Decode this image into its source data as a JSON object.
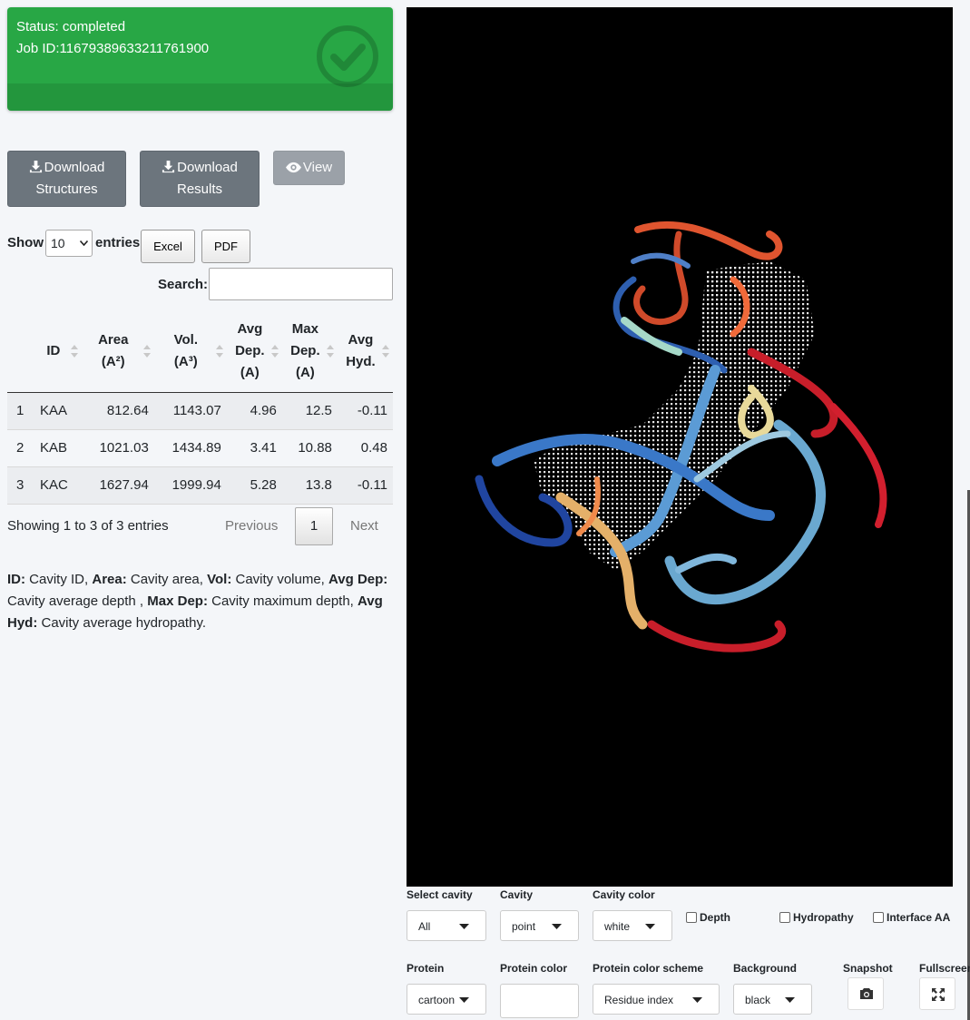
{
  "status": {
    "status_text": "Status: completed",
    "job_text": "Job ID:11679389633211761900",
    "icon": "check-circle-icon"
  },
  "actions": {
    "download_structures": [
      "Download",
      "Structures"
    ],
    "download_results": [
      "Download",
      "Results"
    ],
    "view": "View"
  },
  "table_controls": {
    "show": "Show",
    "entries": "entries",
    "length_value": "10",
    "excel": "Excel",
    "pdf": "PDF",
    "search_label": "Search:",
    "search_value": ""
  },
  "table": {
    "headers": [
      {
        "lines": [
          ""
        ]
      },
      {
        "lines": [
          "ID"
        ]
      },
      {
        "lines": [
          "Area",
          "(A²)"
        ]
      },
      {
        "lines": [
          "Vol.",
          "(A³)"
        ]
      },
      {
        "lines": [
          "Avg",
          "Dep.",
          "(A)"
        ]
      },
      {
        "lines": [
          "Max",
          "Dep.",
          "(A)"
        ]
      },
      {
        "lines": [
          "Avg",
          "Hyd."
        ]
      }
    ],
    "rows": [
      [
        "1",
        "KAA",
        "812.64",
        "1143.07",
        "4.96",
        "12.5",
        "-0.11"
      ],
      [
        "2",
        "KAB",
        "1021.03",
        "1434.89",
        "3.41",
        "10.88",
        "0.48"
      ],
      [
        "3",
        "KAC",
        "1627.94",
        "1999.94",
        "5.28",
        "13.8",
        "-0.11"
      ]
    ],
    "info": "Showing 1 to 3 of 3 entries",
    "previous": "Previous",
    "current_page": "1",
    "next": "Next"
  },
  "legend": [
    {
      "term": "ID:",
      "desc": " Cavity ID, "
    },
    {
      "term": "Area:",
      "desc": " Cavity area, "
    },
    {
      "term": "Vol:",
      "desc": " Cavity volume, "
    },
    {
      "term": "Avg Dep:",
      "desc": " Cavity average depth , "
    },
    {
      "term": "Max Dep:",
      "desc": " Cavity maximum depth, "
    },
    {
      "term": "Avg Hyd:",
      "desc": " Cavity average hydropathy."
    }
  ],
  "viewer": {
    "background": "#000000"
  },
  "controls": {
    "select_cavity": {
      "label": "Select cavity",
      "value": "All"
    },
    "cavity": {
      "label": "Cavity",
      "value": "point"
    },
    "cavity_color": {
      "label": "Cavity color",
      "value": "white"
    },
    "depth": {
      "label": "Depth",
      "checked": false
    },
    "hydropathy": {
      "label": "Hydropathy",
      "checked": false
    },
    "interface_aa": {
      "label": "Interface AA",
      "checked": false
    },
    "protein": {
      "label": "Protein",
      "value": "cartoon"
    },
    "protein_color": {
      "label": "Protein color",
      "value": ""
    },
    "protein_color_scheme": {
      "label": "Protein color scheme",
      "value": "Residue index"
    },
    "background": {
      "label": "Background",
      "value": "black"
    },
    "snapshot": {
      "label": "Snapshot",
      "icon": "camera-icon"
    },
    "fullscreen": {
      "label": "Fullscreen",
      "icon": "expand-icon"
    }
  }
}
